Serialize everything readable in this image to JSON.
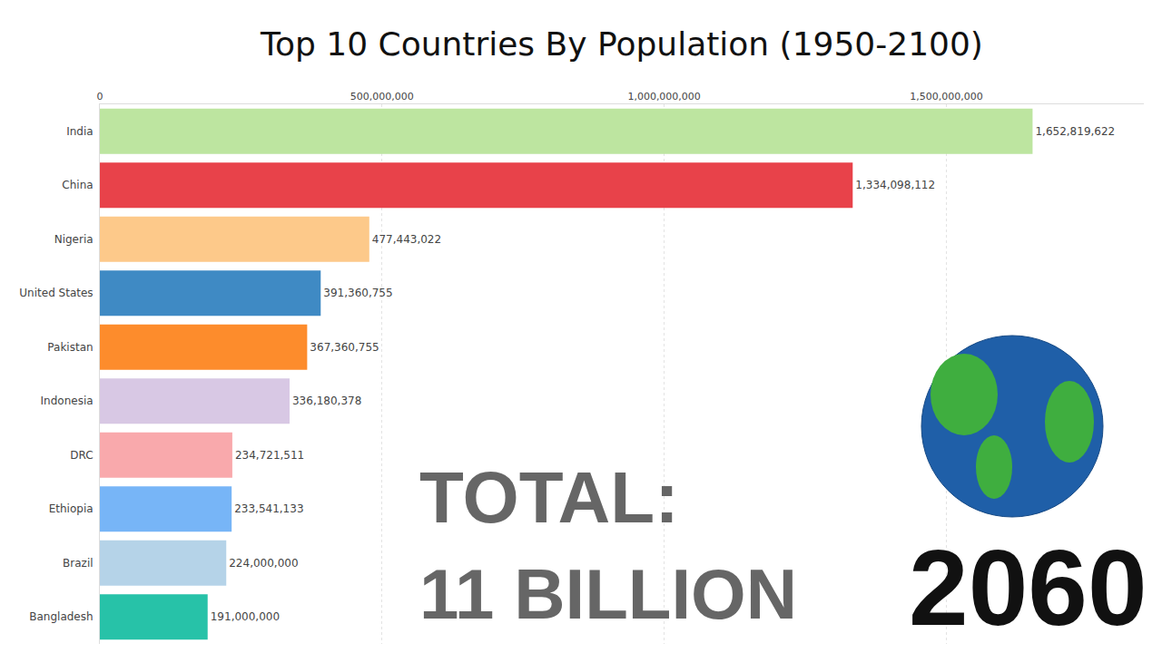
{
  "chart_data": {
    "type": "bar",
    "title": "Top 10 Countries By Population (1950-2100)",
    "orientation": "horizontal",
    "categories": [
      "India",
      "China",
      "Nigeria",
      "United States",
      "Pakistan",
      "Indonesia",
      "DRC",
      "Ethiopia",
      "Brazil",
      "Bangladesh"
    ],
    "values": [
      1652819622,
      1334098112,
      477443022,
      391360755,
      367360755,
      336180378,
      234721511,
      233541133,
      224000000,
      191000000
    ],
    "value_labels": [
      "1,652,819,622",
      "1,334,098,112",
      "477,443,022",
      "391,360,755",
      "367,360,755",
      "336,180,378",
      "234,721,511",
      "233,541,133",
      "224,000,000",
      "191,000,000"
    ],
    "colors": [
      "#bde5a0",
      "#e8424a",
      "#fdc98a",
      "#3f8ac4",
      "#fd8c2c",
      "#d8c8e4",
      "#f9a9ac",
      "#77b5f7",
      "#b5d3e8",
      "#27c2a8"
    ],
    "data_labels": true,
    "grid": true,
    "xlim": [
      0,
      1850000000
    ],
    "xticks": [
      0,
      {
        "value": 500000000,
        "label": "500,000,000"
      },
      {
        "value": 1000000000,
        "label": "1,000,000,000"
      },
      {
        "value": 1500000000,
        "label": "1,500,000,000"
      }
    ],
    "annotations": [
      "TOTAL:",
      "11 BILLION",
      "2060"
    ]
  }
}
